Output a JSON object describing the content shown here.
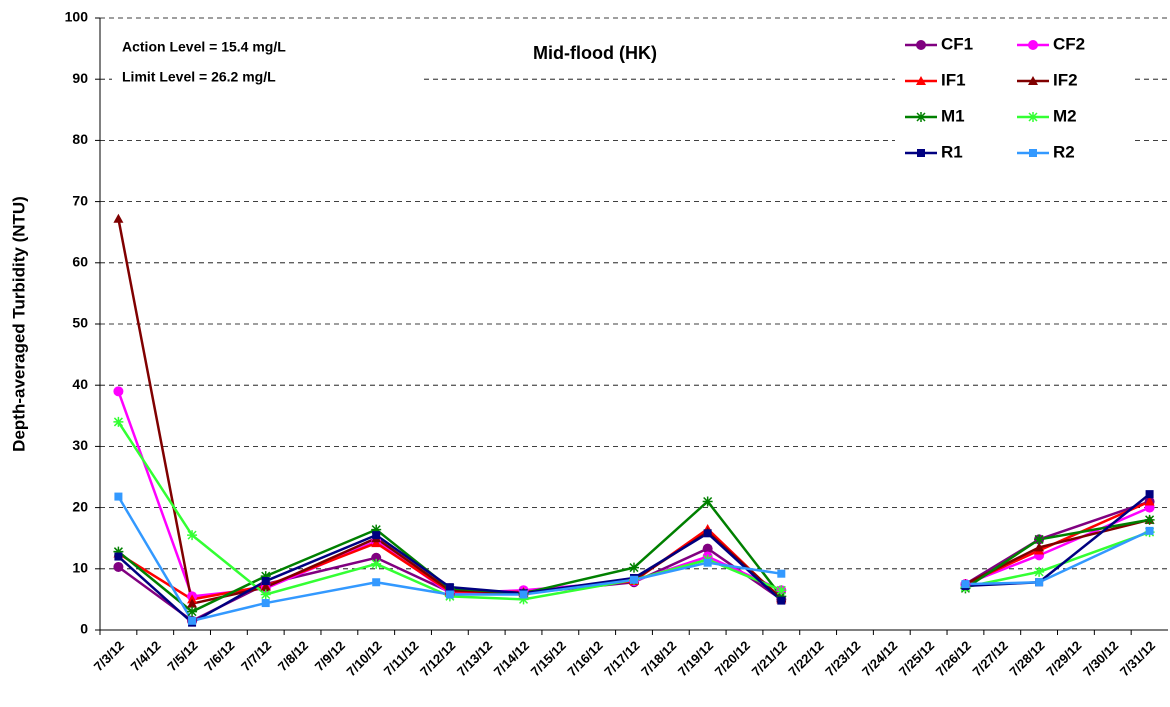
{
  "chart_data": {
    "type": "line",
    "title": "Mid-flood (HK)",
    "annotations": [
      "Action Level = 15.4 mg/L",
      "Limit Level = 26.2 mg/L"
    ],
    "y_label": "Depth-averaged Turbidity (NTU)",
    "categories": [
      "7/3/12",
      "7/4/12",
      "7/5/12",
      "7/6/12",
      "7/7/12",
      "7/8/12",
      "7/9/12",
      "7/10/12",
      "7/11/12",
      "7/12/12",
      "7/13/12",
      "7/14/12",
      "7/15/12",
      "7/16/12",
      "7/17/12",
      "7/18/12",
      "7/19/12",
      "7/20/12",
      "7/21/12",
      "7/22/12",
      "7/23/12",
      "7/24/12",
      "7/25/12",
      "7/26/12",
      "7/27/12",
      "7/28/12",
      "7/29/12",
      "7/30/12",
      "7/31/12"
    ],
    "x": [
      "7/3/12",
      "7/5/12",
      "7/7/12",
      "7/10/12",
      "7/12/12",
      "7/14/12",
      "7/17/12",
      "7/19/12",
      "7/21/12",
      null,
      "7/26/12",
      "7/28/12",
      "7/31/12"
    ],
    "series": [
      {
        "name": "CF1",
        "color": "#800080",
        "marker": "circle",
        "values": [
          10.3,
          1.5,
          7.5,
          11.8,
          6.2,
          6.0,
          7.8,
          13.3,
          5.0,
          null,
          7.5,
          14.8,
          21.0
        ]
      },
      {
        "name": "CF2",
        "color": "#ff00ff",
        "marker": "circle",
        "values": [
          39.0,
          5.5,
          6.8,
          14.5,
          6.0,
          6.5,
          8.0,
          12.0,
          6.5,
          null,
          7.5,
          12.2,
          20.0
        ]
      },
      {
        "name": "IF1",
        "color": "#ff0000",
        "marker": "triangle",
        "values": [
          12.5,
          5.0,
          7.2,
          14.2,
          6.3,
          6.2,
          8.0,
          16.5,
          5.0,
          null,
          7.5,
          13.0,
          21.0
        ]
      },
      {
        "name": "IF2",
        "color": "#800000",
        "marker": "triangle",
        "values": [
          67.2,
          4.3,
          7.0,
          15.0,
          6.5,
          6.0,
          8.2,
          16.0,
          5.2,
          null,
          7.5,
          13.5,
          18.0
        ]
      },
      {
        "name": "M1",
        "color": "#008000",
        "marker": "asterisk",
        "values": [
          12.8,
          3.0,
          8.8,
          16.4,
          6.8,
          6.0,
          10.2,
          21.0,
          5.5,
          null,
          6.8,
          14.8,
          18.0
        ]
      },
      {
        "name": "M2",
        "color": "#33ff33",
        "marker": "asterisk",
        "values": [
          34.0,
          15.5,
          5.8,
          10.8,
          5.5,
          5.0,
          8.2,
          11.5,
          6.5,
          null,
          7.0,
          9.5,
          16.0
        ]
      },
      {
        "name": "R1",
        "color": "#000080",
        "marker": "square",
        "values": [
          12.0,
          1.2,
          8.0,
          15.5,
          7.0,
          6.0,
          8.5,
          15.8,
          4.8,
          null,
          7.2,
          7.8,
          22.2
        ]
      },
      {
        "name": "R2",
        "color": "#3399ff",
        "marker": "square",
        "values": [
          21.8,
          1.5,
          4.4,
          7.8,
          5.8,
          5.8,
          8.2,
          11.0,
          9.2,
          null,
          7.5,
          7.8,
          16.2
        ]
      }
    ],
    "ylim": [
      0,
      100
    ],
    "yticks": [
      0,
      10,
      20,
      30,
      40,
      50,
      60,
      70,
      80,
      90,
      100
    ],
    "grid": true,
    "legend": "top-right"
  }
}
